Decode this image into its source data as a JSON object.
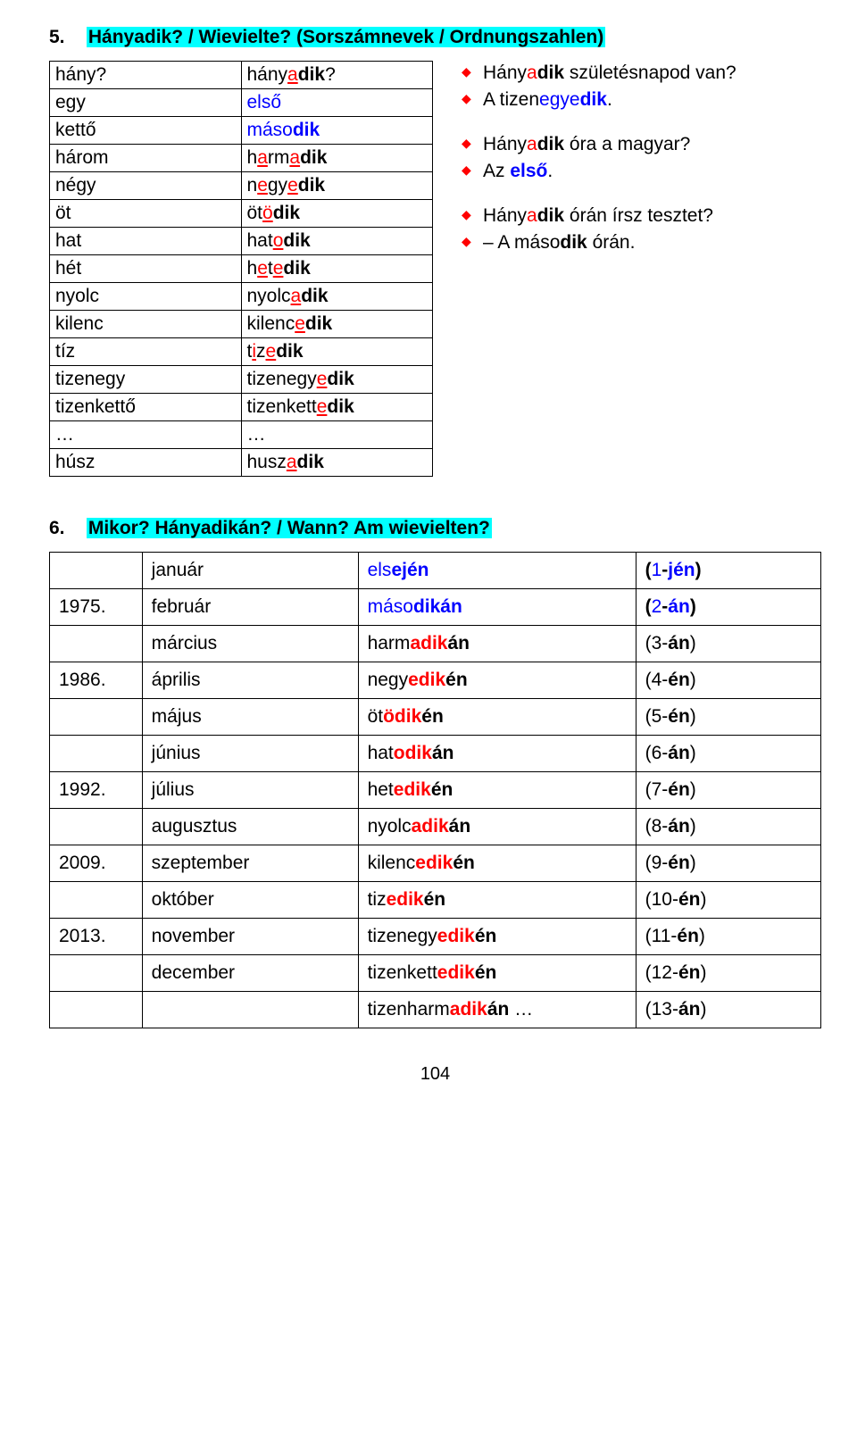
{
  "section5": {
    "num_label": "5.",
    "title": "Hányadik? / Wievielte? (Sorszámnevek / Ordnungszahlen)",
    "rows": [
      {
        "l": "hány?",
        "r": [
          [
            "hány",
            "hány"
          ],
          [
            "a",
            "redu"
          ],
          [
            "dik",
            "bold"
          ],
          [
            "?",
            "plain"
          ]
        ]
      },
      {
        "l": "egy",
        "r": [
          [
            "első",
            "blue"
          ]
        ]
      },
      {
        "l": "kettő",
        "r": [
          [
            "máso",
            "blue"
          ],
          [
            "dik",
            "bold blue"
          ]
        ]
      },
      {
        "l": "három",
        "r": [
          [
            "h",
            "plain"
          ],
          [
            "a",
            "redu"
          ],
          [
            "rm",
            "plain"
          ],
          [
            "a",
            "redu"
          ],
          [
            "dik",
            "bold"
          ]
        ]
      },
      {
        "l": "négy",
        "r": [
          [
            "n",
            "plain"
          ],
          [
            "e",
            "redu"
          ],
          [
            "gy",
            "plain"
          ],
          [
            "e",
            "redu"
          ],
          [
            "dik",
            "bold"
          ]
        ]
      },
      {
        "l": "öt",
        "r": [
          [
            "öt",
            "plain"
          ],
          [
            "ö",
            "redu"
          ],
          [
            "dik",
            "bold"
          ]
        ]
      },
      {
        "l": "hat",
        "r": [
          [
            "hat",
            "plain"
          ],
          [
            "o",
            "redu"
          ],
          [
            "dik",
            "bold"
          ]
        ]
      },
      {
        "l": "hét",
        "r": [
          [
            "h",
            "plain"
          ],
          [
            "e",
            "redu"
          ],
          [
            "t",
            "plain"
          ],
          [
            "e",
            "redu"
          ],
          [
            "dik",
            "bold"
          ]
        ]
      },
      {
        "l": "nyolc",
        "r": [
          [
            "nyolc",
            "plain"
          ],
          [
            "a",
            "redu"
          ],
          [
            "dik",
            "bold"
          ]
        ]
      },
      {
        "l": "kilenc",
        "r": [
          [
            "kilenc",
            "plain"
          ],
          [
            "e",
            "redu"
          ],
          [
            "dik",
            "bold"
          ]
        ]
      },
      {
        "l": "tíz",
        "r": [
          [
            "t",
            "plain"
          ],
          [
            "i",
            "redu"
          ],
          [
            "z",
            "plain"
          ],
          [
            "e",
            "redu"
          ],
          [
            "dik",
            "bold"
          ]
        ]
      },
      {
        "l": "tizenegy",
        "r": [
          [
            "tizenegy",
            "plain"
          ],
          [
            "e",
            "redu"
          ],
          [
            "dik",
            "bold"
          ]
        ]
      },
      {
        "l": "tizenkettő",
        "r": [
          [
            "tizenkett",
            "plain"
          ],
          [
            "e",
            "redu"
          ],
          [
            "dik",
            "bold"
          ]
        ]
      },
      {
        "l": "…",
        "r": [
          [
            "…",
            "plain"
          ]
        ]
      },
      {
        "l": "húsz",
        "r": [
          [
            "husz",
            "plain"
          ],
          [
            "a",
            "redu"
          ],
          [
            "dik",
            "bold"
          ]
        ]
      }
    ],
    "bullets": [
      [
        [
          "Hány",
          "plain"
        ],
        [
          "a",
          "red"
        ],
        [
          "dik",
          "bold"
        ],
        [
          " születésnapod van?",
          "plain"
        ]
      ],
      [
        [
          "A tizen",
          "plain"
        ],
        [
          "egye",
          "blue"
        ],
        [
          "dik",
          "bold blue"
        ],
        [
          ".",
          "plain"
        ]
      ],
      [],
      [
        [
          "Hány",
          "plain"
        ],
        [
          "a",
          "red"
        ],
        [
          "dik",
          "bold"
        ],
        [
          " óra a magyar?",
          "plain"
        ]
      ],
      [
        [
          "Az ",
          "plain"
        ],
        [
          "első",
          "bold blue"
        ],
        [
          ".",
          "plain"
        ]
      ],
      [],
      [
        [
          "Hány",
          "plain"
        ],
        [
          "a",
          "red"
        ],
        [
          "dik",
          "bold"
        ],
        [
          " órán írsz tesztet?",
          "plain"
        ]
      ],
      [
        [
          "– A máso",
          "plain"
        ],
        [
          "dik",
          "bold"
        ],
        [
          " órán.",
          "plain"
        ]
      ]
    ]
  },
  "section6": {
    "num_label": "6.",
    "title": "Mikor? Hányadikán? / Wann? Am wievielten?",
    "rows": [
      {
        "c0": "",
        "c1": "január",
        "c2": [
          [
            "els",
            "blue"
          ],
          [
            "e",
            "bold blue"
          ],
          [
            "jén",
            "bold blue"
          ]
        ],
        "c3": [
          [
            "(",
            "bold"
          ],
          [
            "1",
            "blue"
          ],
          [
            "-",
            "bold"
          ],
          [
            "jén",
            "bold blue"
          ],
          [
            ")",
            "bold"
          ]
        ]
      },
      {
        "c0": "1975.",
        "c1": "február",
        "c2": [
          [
            "máso",
            "blue"
          ],
          [
            "dik",
            "bold blue"
          ],
          [
            "án",
            "bold blue"
          ]
        ],
        "c3": [
          [
            "(",
            "bold"
          ],
          [
            "2",
            "blue"
          ],
          [
            "-",
            "bold"
          ],
          [
            "án",
            "bold blue"
          ],
          [
            ")",
            "bold"
          ]
        ]
      },
      {
        "c0": "",
        "c1": "március",
        "c2": [
          [
            "harm",
            "plain"
          ],
          [
            "adik",
            "bold red"
          ],
          [
            "án",
            "bold"
          ]
        ],
        "c3": [
          [
            "(3-",
            "plain"
          ],
          [
            "án",
            "bold"
          ],
          [
            ")",
            "plain"
          ]
        ]
      },
      {
        "c0": "1986.",
        "c1": "április",
        "c2": [
          [
            "negy",
            "plain"
          ],
          [
            "edik",
            "bold red"
          ],
          [
            "én",
            "bold"
          ]
        ],
        "c3": [
          [
            "(4-",
            "plain"
          ],
          [
            "én",
            "bold"
          ],
          [
            ")",
            "plain"
          ]
        ]
      },
      {
        "c0": "",
        "c1": "május",
        "c2": [
          [
            "öt",
            "plain"
          ],
          [
            "ödik",
            "bold red"
          ],
          [
            "én",
            "bold"
          ]
        ],
        "c3": [
          [
            "(5-",
            "plain"
          ],
          [
            "én",
            "bold"
          ],
          [
            ")",
            "plain"
          ]
        ]
      },
      {
        "c0": "",
        "c1": "június",
        "c2": [
          [
            "hat",
            "plain"
          ],
          [
            "odik",
            "bold red"
          ],
          [
            "án",
            "bold"
          ]
        ],
        "c3": [
          [
            "(6-",
            "plain"
          ],
          [
            "án",
            "bold"
          ],
          [
            ")",
            "plain"
          ]
        ]
      },
      {
        "c0": "1992.",
        "c1": "július",
        "c2": [
          [
            "het",
            "plain"
          ],
          [
            "edik",
            "bold red"
          ],
          [
            "én",
            "bold"
          ]
        ],
        "c3": [
          [
            "(7-",
            "plain"
          ],
          [
            "én",
            "bold"
          ],
          [
            ")",
            "plain"
          ]
        ]
      },
      {
        "c0": "",
        "c1": "augusztus",
        "c2": [
          [
            "nyolc",
            "plain"
          ],
          [
            "adik",
            "bold red"
          ],
          [
            "án",
            "bold"
          ]
        ],
        "c3": [
          [
            "(8-",
            "plain"
          ],
          [
            "án",
            "bold"
          ],
          [
            ")",
            "plain"
          ]
        ]
      },
      {
        "c0": "2009.",
        "c1": "szeptember",
        "c2": [
          [
            "kilenc",
            "plain"
          ],
          [
            "edik",
            "bold red"
          ],
          [
            "én",
            "bold"
          ]
        ],
        "c3": [
          [
            "(9-",
            "plain"
          ],
          [
            "én",
            "bold"
          ],
          [
            ")",
            "plain"
          ]
        ]
      },
      {
        "c0": "",
        "c1": "október",
        "c2": [
          [
            "tiz",
            "plain"
          ],
          [
            "edik",
            "bold red"
          ],
          [
            "én",
            "bold"
          ]
        ],
        "c3": [
          [
            "(10-",
            "plain"
          ],
          [
            "én",
            "bold"
          ],
          [
            ")",
            "plain"
          ]
        ]
      },
      {
        "c0": "2013.",
        "c1": "november",
        "c2": [
          [
            "tizenegy",
            "plain"
          ],
          [
            "edik",
            "bold red"
          ],
          [
            "én",
            "bold"
          ]
        ],
        "c3": [
          [
            "(11-",
            "plain"
          ],
          [
            "én",
            "bold"
          ],
          [
            ")",
            "plain"
          ]
        ]
      },
      {
        "c0": "",
        "c1": "december",
        "c2": [
          [
            "tizenkett",
            "plain"
          ],
          [
            "edik",
            "bold red"
          ],
          [
            "én",
            "bold"
          ]
        ],
        "c3": [
          [
            "(12-",
            "plain"
          ],
          [
            "én",
            "bold"
          ],
          [
            ")",
            "plain"
          ]
        ]
      },
      {
        "c0": "",
        "c1": "",
        "c2": [
          [
            "tizenharm",
            "plain"
          ],
          [
            "adik",
            "bold red"
          ],
          [
            "án",
            "bold"
          ],
          [
            " …",
            "plain"
          ]
        ],
        "c3": [
          [
            "(13-",
            "plain"
          ],
          [
            "án",
            "bold"
          ],
          [
            ")",
            "plain"
          ]
        ]
      }
    ]
  },
  "page_number": "104"
}
